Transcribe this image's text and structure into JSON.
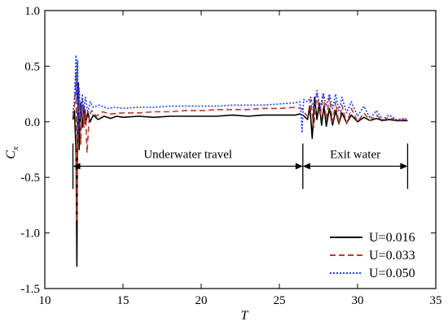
{
  "chart_data": {
    "type": "line",
    "xlabel": "T",
    "ylabel_main": "C",
    "ylabel_sub": "x",
    "xlim": [
      10,
      35
    ],
    "ylim": [
      -1.5,
      1.0
    ],
    "x_ticks": [
      10,
      15,
      20,
      25,
      30,
      35
    ],
    "y_ticks": [
      1.0,
      0.5,
      0.0,
      -0.5,
      -1.0,
      -1.5
    ],
    "x_tick_labels": [
      "10",
      "15",
      "20",
      "25",
      "30",
      "35"
    ],
    "y_tick_labels": [
      "1.0",
      "0.5",
      "0.0",
      "-0.5",
      "-1.0",
      "-1.5"
    ],
    "legend_position": "bottom-right",
    "annotations": {
      "underwater_label": "Underwater travel",
      "exit_label": "Exit water",
      "boundaries_x": [
        11.8,
        26.5,
        33.2
      ],
      "arrow_y": -0.4
    },
    "series": [
      {
        "name": "U=0.016",
        "color": "#000000",
        "style": "solid",
        "points": [
          [
            11.8,
            0.02
          ],
          [
            11.9,
            0.1
          ],
          [
            12.0,
            -0.3
          ],
          [
            12.05,
            -1.3
          ],
          [
            12.1,
            0.05
          ],
          [
            12.15,
            0.35
          ],
          [
            12.2,
            -0.25
          ],
          [
            12.3,
            0.17
          ],
          [
            12.4,
            -0.05
          ],
          [
            12.5,
            0.14
          ],
          [
            12.6,
            -0.02
          ],
          [
            12.75,
            0.08
          ],
          [
            12.9,
            0.0
          ],
          [
            13.1,
            0.06
          ],
          [
            13.4,
            0.02
          ],
          [
            13.8,
            0.05
          ],
          [
            14.2,
            0.03
          ],
          [
            14.6,
            0.05
          ],
          [
            15.0,
            0.04
          ],
          [
            16.0,
            0.05
          ],
          [
            17.0,
            0.04
          ],
          [
            18.0,
            0.05
          ],
          [
            19.0,
            0.05
          ],
          [
            20.0,
            0.05
          ],
          [
            21.0,
            0.05
          ],
          [
            22.0,
            0.06
          ],
          [
            23.0,
            0.05
          ],
          [
            24.0,
            0.06
          ],
          [
            25.0,
            0.06
          ],
          [
            26.0,
            0.06
          ],
          [
            26.3,
            0.07
          ],
          [
            26.5,
            0.06
          ],
          [
            26.8,
            0.02
          ],
          [
            26.95,
            0.14
          ],
          [
            27.1,
            -0.15
          ],
          [
            27.25,
            0.22
          ],
          [
            27.4,
            0.02
          ],
          [
            27.55,
            0.17
          ],
          [
            27.7,
            -0.03
          ],
          [
            27.85,
            0.14
          ],
          [
            28.0,
            -0.04
          ],
          [
            28.2,
            0.12
          ],
          [
            28.4,
            -0.03
          ],
          [
            28.6,
            0.1
          ],
          [
            28.8,
            -0.02
          ],
          [
            29.0,
            0.08
          ],
          [
            29.3,
            -0.01
          ],
          [
            29.6,
            0.06
          ],
          [
            30.0,
            0.0
          ],
          [
            30.4,
            0.04
          ],
          [
            30.8,
            0.01
          ],
          [
            31.2,
            0.03
          ],
          [
            31.6,
            0.01
          ],
          [
            32.0,
            0.02
          ],
          [
            32.5,
            0.01
          ],
          [
            33.0,
            0.01
          ],
          [
            33.2,
            0.01
          ]
        ]
      },
      {
        "name": "U=0.033",
        "color": "#c0392b",
        "style": "dash",
        "points": [
          [
            11.8,
            0.05
          ],
          [
            11.9,
            0.15
          ],
          [
            12.0,
            0.45
          ],
          [
            12.05,
            -0.9
          ],
          [
            12.1,
            0.2
          ],
          [
            12.2,
            0.15
          ],
          [
            12.3,
            -0.2
          ],
          [
            12.4,
            0.2
          ],
          [
            12.5,
            -0.05
          ],
          [
            12.6,
            0.12
          ],
          [
            12.7,
            -0.28
          ],
          [
            12.85,
            0.06
          ],
          [
            13.0,
            0.1
          ],
          [
            13.3,
            0.05
          ],
          [
            13.7,
            0.09
          ],
          [
            14.2,
            0.07
          ],
          [
            15.0,
            0.08
          ],
          [
            16.0,
            0.08
          ],
          [
            17.0,
            0.09
          ],
          [
            18.0,
            0.09
          ],
          [
            19.0,
            0.1
          ],
          [
            20.0,
            0.1
          ],
          [
            21.0,
            0.11
          ],
          [
            22.0,
            0.11
          ],
          [
            23.0,
            0.11
          ],
          [
            24.0,
            0.12
          ],
          [
            25.0,
            0.12
          ],
          [
            26.0,
            0.13
          ],
          [
            26.4,
            0.12
          ],
          [
            26.6,
            0.08
          ],
          [
            26.8,
            0.05
          ],
          [
            27.0,
            0.2
          ],
          [
            27.2,
            -0.05
          ],
          [
            27.4,
            0.25
          ],
          [
            27.6,
            0.05
          ],
          [
            27.8,
            0.24
          ],
          [
            28.0,
            0.02
          ],
          [
            28.2,
            0.22
          ],
          [
            28.4,
            0.0
          ],
          [
            28.6,
            0.18
          ],
          [
            28.8,
            -0.02
          ],
          [
            29.0,
            0.15
          ],
          [
            29.3,
            -0.02
          ],
          [
            29.6,
            0.12
          ],
          [
            30.0,
            0.0
          ],
          [
            30.4,
            0.08
          ],
          [
            30.8,
            0.01
          ],
          [
            31.2,
            0.06
          ],
          [
            31.6,
            0.01
          ],
          [
            32.0,
            0.04
          ],
          [
            32.5,
            0.01
          ],
          [
            33.0,
            0.02
          ],
          [
            33.2,
            0.01
          ]
        ]
      },
      {
        "name": "U=0.050",
        "color": "#1f3fff",
        "style": "dot",
        "points": [
          [
            11.8,
            0.08
          ],
          [
            11.9,
            0.2
          ],
          [
            12.0,
            0.6
          ],
          [
            12.05,
            0.2
          ],
          [
            12.1,
            0.55
          ],
          [
            12.15,
            -0.1
          ],
          [
            12.2,
            0.3
          ],
          [
            12.3,
            0.05
          ],
          [
            12.4,
            0.25
          ],
          [
            12.5,
            0.1
          ],
          [
            12.6,
            0.22
          ],
          [
            12.75,
            0.08
          ],
          [
            12.9,
            0.18
          ],
          [
            13.1,
            0.13
          ],
          [
            13.5,
            0.15
          ],
          [
            14.0,
            0.12
          ],
          [
            14.5,
            0.13
          ],
          [
            15.0,
            0.12
          ],
          [
            16.0,
            0.13
          ],
          [
            17.0,
            0.13
          ],
          [
            18.0,
            0.14
          ],
          [
            19.0,
            0.14
          ],
          [
            20.0,
            0.14
          ],
          [
            21.0,
            0.14
          ],
          [
            22.0,
            0.15
          ],
          [
            23.0,
            0.15
          ],
          [
            24.0,
            0.15
          ],
          [
            25.0,
            0.16
          ],
          [
            26.0,
            0.17
          ],
          [
            26.3,
            0.18
          ],
          [
            26.4,
            0.05
          ],
          [
            26.45,
            -0.1
          ],
          [
            26.55,
            0.2
          ],
          [
            26.8,
            0.18
          ],
          [
            27.0,
            0.22
          ],
          [
            27.2,
            0.12
          ],
          [
            27.4,
            0.28
          ],
          [
            27.6,
            0.12
          ],
          [
            27.8,
            0.26
          ],
          [
            28.0,
            0.14
          ],
          [
            28.2,
            0.25
          ],
          [
            28.4,
            0.12
          ],
          [
            28.6,
            0.25
          ],
          [
            28.8,
            0.1
          ],
          [
            29.0,
            0.22
          ],
          [
            29.3,
            0.08
          ],
          [
            29.6,
            0.18
          ],
          [
            30.0,
            0.05
          ],
          [
            30.4,
            0.14
          ],
          [
            30.8,
            0.03
          ],
          [
            31.2,
            0.1
          ],
          [
            31.6,
            0.02
          ],
          [
            32.0,
            0.06
          ],
          [
            32.5,
            0.02
          ],
          [
            33.0,
            0.03
          ],
          [
            33.2,
            0.02
          ]
        ]
      }
    ]
  }
}
